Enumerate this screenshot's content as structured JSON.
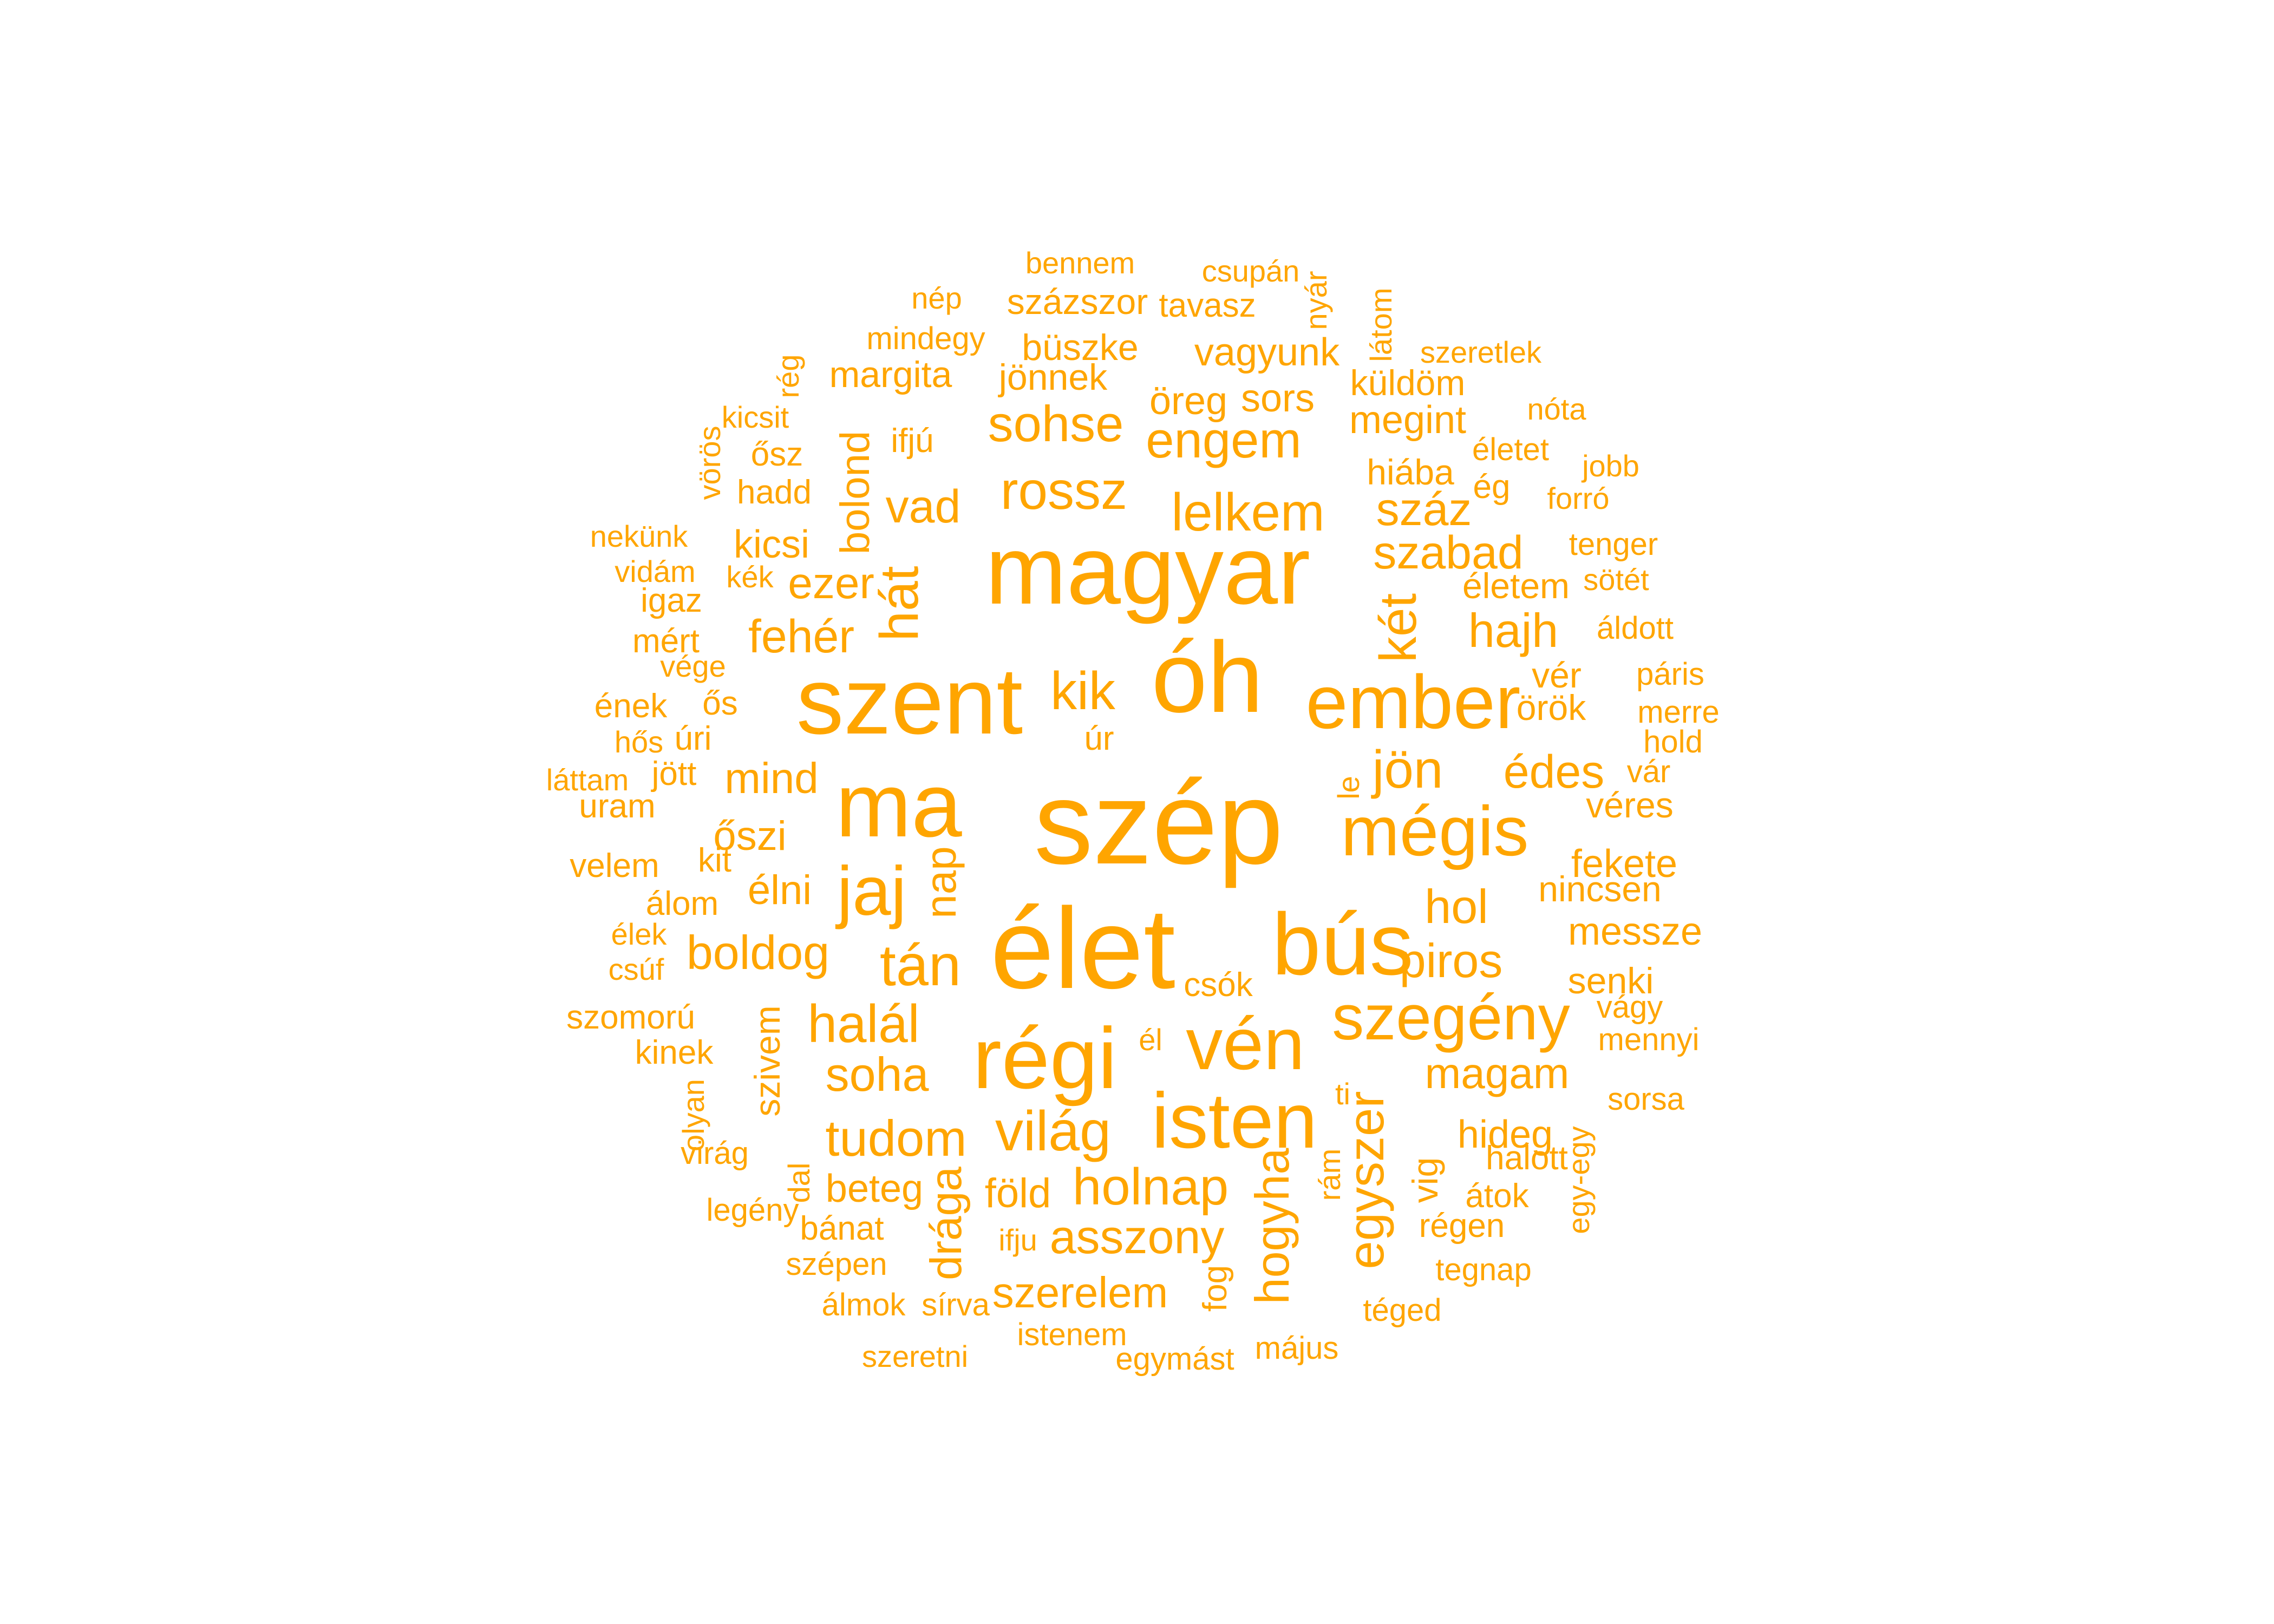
{
  "color": "#FFA500",
  "words": [
    {
      "text": "szép",
      "size": 75
    },
    {
      "text": "élet",
      "size": 73
    },
    {
      "text": "óh",
      "size": 64
    },
    {
      "text": "magyar",
      "size": 62
    },
    {
      "text": "szent",
      "size": 60
    },
    {
      "text": "ma",
      "size": 58
    },
    {
      "text": "bús",
      "size": 56
    },
    {
      "text": "régi",
      "size": 55
    },
    {
      "text": "isten",
      "size": 50
    },
    {
      "text": "ember",
      "size": 48
    },
    {
      "text": "vén",
      "size": 47
    },
    {
      "text": "mégis",
      "size": 45
    },
    {
      "text": "jaj",
      "size": 44
    },
    {
      "text": "szegény",
      "size": 41
    },
    {
      "text": "tán",
      "size": 37
    },
    {
      "text": "világ",
      "size": 36
    },
    {
      "text": "hát",
      "size": 35
    },
    {
      "text": "halál",
      "size": 34
    },
    {
      "text": "rossz",
      "size": 34
    },
    {
      "text": "lelkem",
      "size": 34
    },
    {
      "text": "jön",
      "size": 34
    },
    {
      "text": "kik",
      "size": 34
    },
    {
      "text": "holnap",
      "size": 33
    },
    {
      "text": "két",
      "size": 33
    },
    {
      "text": "tudom",
      "size": 32
    },
    {
      "text": "engem",
      "size": 32
    },
    {
      "text": "sohse",
      "size": 32
    },
    {
      "text": "egyszer",
      "size": 32
    },
    {
      "text": "hogyha",
      "size": 30
    },
    {
      "text": "hol",
      "size": 30
    },
    {
      "text": "piros",
      "size": 30
    },
    {
      "text": "boldog",
      "size": 30
    },
    {
      "text": "soha",
      "size": 30
    },
    {
      "text": "asszony",
      "size": 30
    },
    {
      "text": "hajh",
      "size": 30
    },
    {
      "text": "vad",
      "size": 29
    },
    {
      "text": "száz",
      "size": 29
    },
    {
      "text": "szabad",
      "size": 29
    },
    {
      "text": "fehér",
      "size": 29
    },
    {
      "text": "édes",
      "size": 29
    },
    {
      "text": "ezer",
      "size": 28
    },
    {
      "text": "drága",
      "size": 28
    },
    {
      "text": "mind",
      "size": 27
    },
    {
      "text": "nap",
      "size": 27
    },
    {
      "text": "szerelem",
      "size": 27
    },
    {
      "text": "magam",
      "size": 27
    },
    {
      "text": "bolond",
      "size": 26
    },
    {
      "text": "őszi",
      "size": 26
    },
    {
      "text": "élni",
      "size": 26
    },
    {
      "text": "föld",
      "size": 26
    },
    {
      "text": "hideg",
      "size": 25
    },
    {
      "text": "vagyunk",
      "size": 25
    },
    {
      "text": "sors",
      "size": 25
    },
    {
      "text": "öreg",
      "size": 25
    },
    {
      "text": "megint",
      "size": 25
    },
    {
      "text": "kicsi",
      "size": 25
    },
    {
      "text": "beteg",
      "size": 25
    },
    {
      "text": "fekete",
      "size": 25
    },
    {
      "text": "messze",
      "size": 25
    },
    {
      "text": "senki",
      "size": 24
    },
    {
      "text": "jönnek",
      "size": 24
    },
    {
      "text": "büszke",
      "size": 24
    },
    {
      "text": "margita",
      "size": 24
    },
    {
      "text": "százszor",
      "size": 23
    },
    {
      "text": "hiába",
      "size": 23
    },
    {
      "text": "küldöm",
      "size": 23
    },
    {
      "text": "életem",
      "size": 23
    },
    {
      "text": "örök",
      "size": 23
    },
    {
      "text": "vér",
      "size": 23
    },
    {
      "text": "nincsen",
      "size": 23
    },
    {
      "text": "véres",
      "size": 23
    },
    {
      "text": "szivem",
      "size": 23
    },
    {
      "text": "vig",
      "size": 23
    },
    {
      "text": "fog",
      "size": 22
    },
    {
      "text": "úr",
      "size": 22
    },
    {
      "text": "tavasz",
      "size": 22
    },
    {
      "text": "ifjú",
      "size": 22
    },
    {
      "text": "hadd",
      "size": 22
    },
    {
      "text": "ősz",
      "size": 22
    },
    {
      "text": "igaz",
      "size": 22
    },
    {
      "text": "mért",
      "size": 22
    },
    {
      "text": "kit",
      "size": 22
    },
    {
      "text": "álom",
      "size": 22
    },
    {
      "text": "jött",
      "size": 22
    },
    {
      "text": "uram",
      "size": 22
    },
    {
      "text": "úri",
      "size": 22
    },
    {
      "text": "ős",
      "size": 22
    },
    {
      "text": "ének",
      "size": 22
    },
    {
      "text": "velem",
      "size": 22
    },
    {
      "text": "szomorú",
      "size": 22
    },
    {
      "text": "kinek",
      "size": 22
    },
    {
      "text": "virág",
      "size": 21
    },
    {
      "text": "legény",
      "size": 21
    },
    {
      "text": "bánat",
      "size": 22
    },
    {
      "text": "szépen",
      "size": 21
    },
    {
      "text": "álmok",
      "size": 21
    },
    {
      "text": "sírva",
      "size": 21
    },
    {
      "text": "istenem",
      "size": 21
    },
    {
      "text": "szeretni",
      "size": 20
    },
    {
      "text": "egymást",
      "size": 21
    },
    {
      "text": "május",
      "size": 21
    },
    {
      "text": "téged",
      "size": 21
    },
    {
      "text": "tegnap",
      "size": 21
    },
    {
      "text": "régen",
      "size": 22
    },
    {
      "text": "átok",
      "size": 22
    },
    {
      "text": "halott",
      "size": 22
    },
    {
      "text": "sorsa",
      "size": 21
    },
    {
      "text": "mennyi",
      "size": 21
    },
    {
      "text": "vágy",
      "size": 21
    },
    {
      "text": "vár",
      "size": 21
    },
    {
      "text": "hold",
      "size": 21
    },
    {
      "text": "merre",
      "size": 21
    },
    {
      "text": "páris",
      "size": 21
    },
    {
      "text": "áldott",
      "size": 21
    },
    {
      "text": "sötét",
      "size": 20
    },
    {
      "text": "tenger",
      "size": 21
    },
    {
      "text": "forró",
      "size": 20
    },
    {
      "text": "jobb",
      "size": 20
    },
    {
      "text": "életet",
      "size": 21
    },
    {
      "text": "ég",
      "size": 22
    },
    {
      "text": "nóta",
      "size": 20
    },
    {
      "text": "szeretlek",
      "size": 20
    },
    {
      "text": "látom",
      "size": 20
    },
    {
      "text": "nyár",
      "size": 20
    },
    {
      "text": "csupán",
      "size": 20
    },
    {
      "text": "bennem",
      "size": 20
    },
    {
      "text": "nép",
      "size": 20
    },
    {
      "text": "mindegy",
      "size": 21
    },
    {
      "text": "rég",
      "size": 20
    },
    {
      "text": "kicsit",
      "size": 20
    },
    {
      "text": "vörös",
      "size": 20
    },
    {
      "text": "nekünk",
      "size": 20
    },
    {
      "text": "vidám",
      "size": 20
    },
    {
      "text": "kék",
      "size": 20
    },
    {
      "text": "vége",
      "size": 20
    },
    {
      "text": "hős",
      "size": 20
    },
    {
      "text": "láttam",
      "size": 20
    },
    {
      "text": "élek",
      "size": 20
    },
    {
      "text": "csúf",
      "size": 20
    },
    {
      "text": "olyan",
      "size": 20
    },
    {
      "text": "dal",
      "size": 20
    },
    {
      "text": "ifju",
      "size": 20
    },
    {
      "text": "csók",
      "size": 21
    },
    {
      "text": "él",
      "size": 20
    },
    {
      "text": "le",
      "size": 20
    },
    {
      "text": "ti",
      "size": 20
    },
    {
      "text": "rám",
      "size": 20
    },
    {
      "text": "egy-egy",
      "size": 20
    }
  ]
}
